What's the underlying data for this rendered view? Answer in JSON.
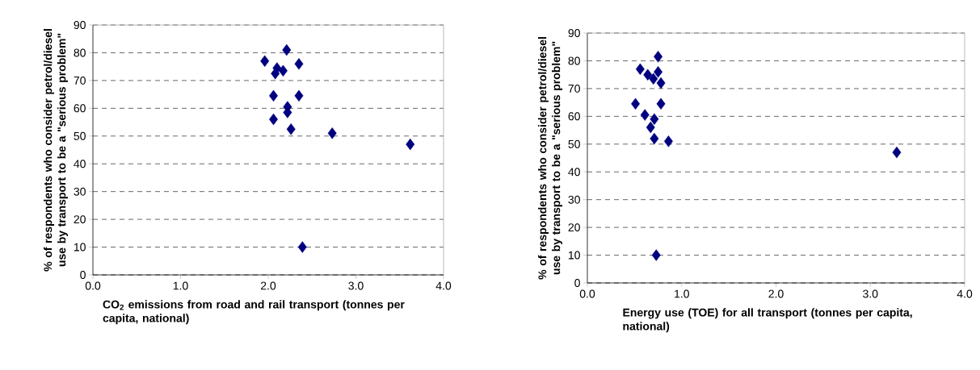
{
  "chart_data": [
    {
      "type": "scatter",
      "xlabel": "CO$_{2}$ emissions from road and rail transport (tonnes per capita, national)",
      "ylabel": "% of respondents who consider petrol/diesel use by transport to be a \"serious problem\"",
      "x": [
        1.96,
        2.21,
        2.35,
        2.1,
        2.17,
        2.08,
        2.06,
        2.35,
        2.22,
        2.22,
        2.06,
        2.26,
        2.73,
        3.62,
        2.39
      ],
      "values": [
        77,
        81,
        76,
        74.5,
        73.5,
        72.5,
        64.5,
        64.5,
        60.5,
        58.5,
        56,
        52.5,
        51,
        47,
        10
      ],
      "color": "#000080",
      "marker": "diamond",
      "grid": "y",
      "xlim": [
        0,
        4
      ],
      "xticks": [
        {
          "value": 0,
          "label": "0.0"
        },
        {
          "value": 1,
          "label": "1.0"
        },
        {
          "value": 2,
          "label": "2.0"
        },
        {
          "value": 3,
          "label": "3.0"
        },
        {
          "value": 4,
          "label": "4.0"
        }
      ],
      "ylim": [
        0,
        90
      ],
      "yticks": [
        0,
        10,
        20,
        30,
        40,
        50,
        60,
        70,
        80,
        90
      ]
    },
    {
      "type": "scatter",
      "xlabel": "Energy use (TOE) for all transport (tonnes per capita, national)",
      "ylabel": "% of respondents who consider petrol/diesel use by transport to be a \"serious problem\"",
      "x": [
        0.56,
        0.75,
        0.75,
        0.64,
        0.7,
        0.78,
        0.51,
        0.78,
        0.61,
        0.71,
        0.67,
        0.71,
        0.86,
        3.28,
        0.73
      ],
      "values": [
        77,
        81.5,
        76,
        75,
        73.5,
        72,
        64.5,
        64.5,
        60.5,
        59,
        56,
        52,
        51,
        47,
        10
      ],
      "color": "#000080",
      "marker": "diamond",
      "grid": "y",
      "xlim": [
        0,
        4
      ],
      "xticks": [
        {
          "value": 0,
          "label": "0.0"
        },
        {
          "value": 1,
          "label": "1.0"
        },
        {
          "value": 2,
          "label": "2.0"
        },
        {
          "value": 3,
          "label": "3.0"
        },
        {
          "value": 4,
          "label": "4.0"
        }
      ],
      "ylim": [
        0,
        90
      ],
      "yticks": [
        0,
        10,
        20,
        30,
        40,
        50,
        60,
        70,
        80,
        90
      ]
    }
  ]
}
